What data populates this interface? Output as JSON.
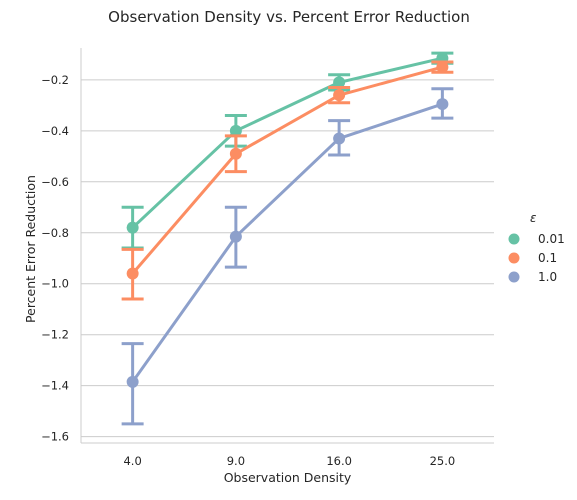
{
  "chart_data": {
    "type": "line",
    "title": "Observation Density vs. Percent Error Reduction",
    "xlabel": "Observation Density",
    "ylabel": "Percent Error Reduction",
    "categories": [
      "4.0",
      "9.0",
      "16.0",
      "25.0"
    ],
    "ylim": [
      -1.625,
      -0.075
    ],
    "yticks": [
      -1.6,
      -1.4,
      -1.2,
      -1.0,
      -0.8,
      -0.6,
      -0.4,
      -0.2
    ],
    "ytick_labels": [
      "−1.6",
      "−1.4",
      "−1.2",
      "−1.0",
      "−0.8",
      "−0.6",
      "−0.4",
      "−0.2"
    ],
    "grid": "horizontal",
    "legend": {
      "title": "ε",
      "placement": "right"
    },
    "series": [
      {
        "name": "0.01",
        "color": "#66c2a5",
        "values": [
          -0.78,
          -0.4,
          -0.21,
          -0.115
        ],
        "err_low": [
          -0.86,
          -0.46,
          -0.24,
          -0.135
        ],
        "err_high": [
          -0.7,
          -0.34,
          -0.18,
          -0.095
        ]
      },
      {
        "name": "0.1",
        "color": "#fc8d62",
        "values": [
          -0.96,
          -0.49,
          -0.26,
          -0.15
        ],
        "err_low": [
          -1.06,
          -0.56,
          -0.29,
          -0.17
        ],
        "err_high": [
          -0.865,
          -0.42,
          -0.23,
          -0.13
        ]
      },
      {
        "name": "1.0",
        "color": "#8da0cb",
        "values": [
          -1.385,
          -0.815,
          -0.43,
          -0.295
        ],
        "err_low": [
          -1.55,
          -0.935,
          -0.495,
          -0.35
        ],
        "err_high": [
          -1.235,
          -0.7,
          -0.36,
          -0.235
        ]
      }
    ]
  }
}
